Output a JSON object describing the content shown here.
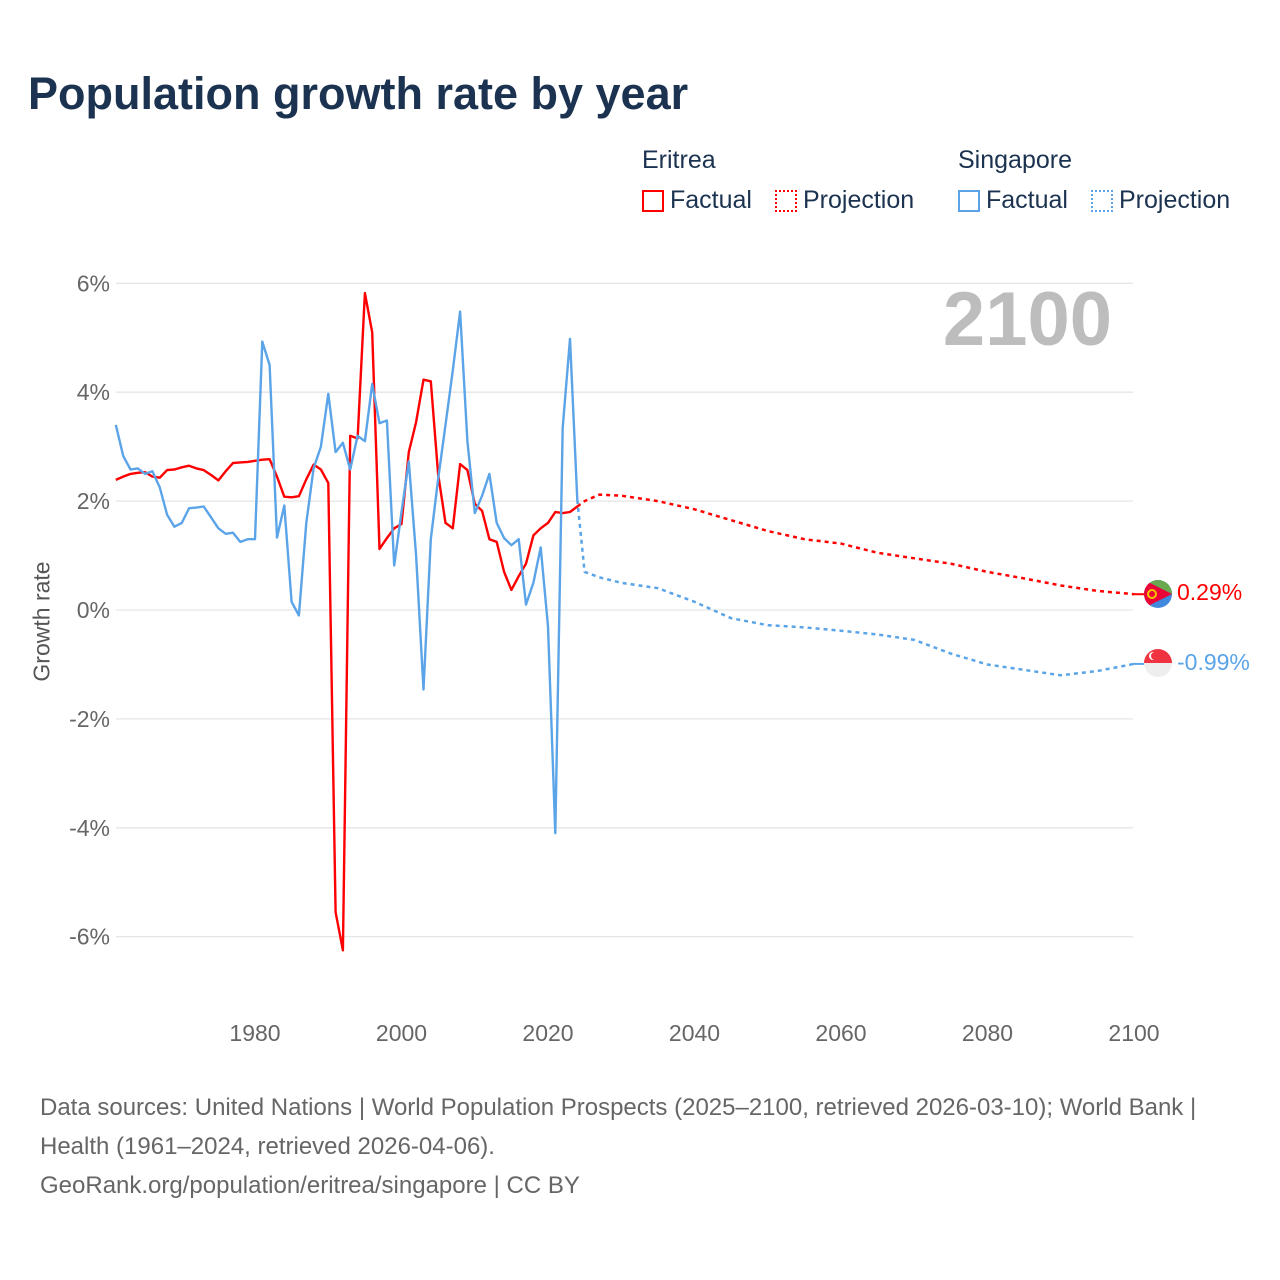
{
  "title": "Population growth rate by year",
  "legend": {
    "groups": [
      {
        "name": "Eritrea",
        "factual": "Factual",
        "projection": "Projection"
      },
      {
        "name": "Singapore",
        "factual": "Factual",
        "projection": "Projection"
      }
    ]
  },
  "colors": {
    "eritrea": "#ff0000",
    "singapore": "#5ba4e8"
  },
  "year_display": "2100",
  "end_labels": {
    "eritrea": "0.29%",
    "singapore": "-0.99%"
  },
  "footer": {
    "line1": "Data sources: United Nations | World Population Prospects (2025–2100, retrieved 2026-03-10); World Bank | Health (1961–2024, retrieved 2026-04-06).",
    "line2": "GeoRank.org/population/eritrea/singapore | CC BY"
  },
  "chart_data": {
    "type": "line",
    "title": "Population growth rate by year",
    "xlabel": "",
    "ylabel": "Growth rate",
    "xlim": [
      1961,
      2100
    ],
    "ylim": [
      -7,
      6.5
    ],
    "xticks": [
      1980,
      2000,
      2020,
      2040,
      2060,
      2080,
      2100
    ],
    "xtick_labels": [
      "1980",
      "2000",
      "2020",
      "2040",
      "2060",
      "2080",
      "2100"
    ],
    "yticks": [
      6,
      4,
      2,
      0,
      -2,
      -4,
      -6
    ],
    "ytick_labels": [
      "6%",
      "4%",
      "2%",
      "0%",
      "-2%",
      "-4%",
      "-6%"
    ],
    "grid": true,
    "series": [
      {
        "name": "Eritrea Factual",
        "style": "solid",
        "color": "#ff0000",
        "start_year": 1961,
        "values": [
          2.39,
          2.45,
          2.5,
          2.52,
          2.53,
          2.45,
          2.43,
          2.57,
          2.58,
          2.62,
          2.65,
          2.6,
          2.57,
          2.48,
          2.38,
          2.55,
          2.7,
          2.71,
          2.72,
          2.74,
          2.76,
          2.77,
          2.45,
          2.08,
          2.07,
          2.09,
          2.4,
          2.67,
          2.58,
          2.33,
          -5.55,
          -6.25,
          3.2,
          3.15,
          5.82,
          5.1,
          1.12,
          1.32,
          1.5,
          1.58,
          2.9,
          3.45,
          4.23,
          4.2,
          2.5,
          1.6,
          1.5,
          2.68,
          2.57,
          1.95,
          1.82,
          1.3,
          1.25,
          0.7,
          0.37,
          0.62,
          0.85,
          1.37,
          1.5,
          1.6,
          1.8,
          1.78,
          1.8,
          1.9
        ]
      },
      {
        "name": "Singapore Factual",
        "style": "solid",
        "color": "#5ba4e8",
        "start_year": 1961,
        "values": [
          3.4,
          2.83,
          2.58,
          2.6,
          2.5,
          2.55,
          2.25,
          1.75,
          1.53,
          1.6,
          1.87,
          1.88,
          1.9,
          1.7,
          1.5,
          1.4,
          1.42,
          1.25,
          1.3,
          1.3,
          4.93,
          4.5,
          1.33,
          1.92,
          0.15,
          -0.1,
          1.6,
          2.6,
          3.0,
          3.97,
          2.9,
          3.07,
          2.58,
          3.2,
          3.1,
          4.15,
          3.43,
          3.48,
          0.82,
          1.8,
          2.73,
          1.0,
          -1.46,
          1.3,
          2.4,
          3.4,
          4.4,
          5.48,
          3.1,
          1.78,
          2.1,
          2.5,
          1.6,
          1.32,
          1.19,
          1.3,
          0.1,
          0.5,
          1.15,
          -0.3,
          -4.1,
          3.35,
          4.98,
          2.02
        ]
      },
      {
        "name": "Eritrea Projection",
        "style": "dotted",
        "color": "#ff0000",
        "x": [
          2024,
          2025,
          2027,
          2030,
          2035,
          2040,
          2045,
          2050,
          2055,
          2060,
          2065,
          2070,
          2075,
          2080,
          2085,
          2090,
          2095,
          2100
        ],
        "values": [
          1.9,
          2.0,
          2.12,
          2.1,
          2.0,
          1.85,
          1.65,
          1.45,
          1.3,
          1.22,
          1.05,
          0.95,
          0.85,
          0.7,
          0.58,
          0.45,
          0.35,
          0.29
        ]
      },
      {
        "name": "Singapore Projection",
        "style": "dotted",
        "color": "#5ba4e8",
        "x": [
          2024,
          2025,
          2027,
          2030,
          2035,
          2040,
          2045,
          2050,
          2055,
          2060,
          2065,
          2070,
          2075,
          2080,
          2085,
          2090,
          2095,
          2100
        ],
        "values": [
          2.02,
          0.7,
          0.6,
          0.5,
          0.4,
          0.15,
          -0.15,
          -0.28,
          -0.32,
          -0.38,
          -0.45,
          -0.55,
          -0.8,
          -1.0,
          -1.1,
          -1.2,
          -1.12,
          -0.99
        ]
      }
    ]
  }
}
